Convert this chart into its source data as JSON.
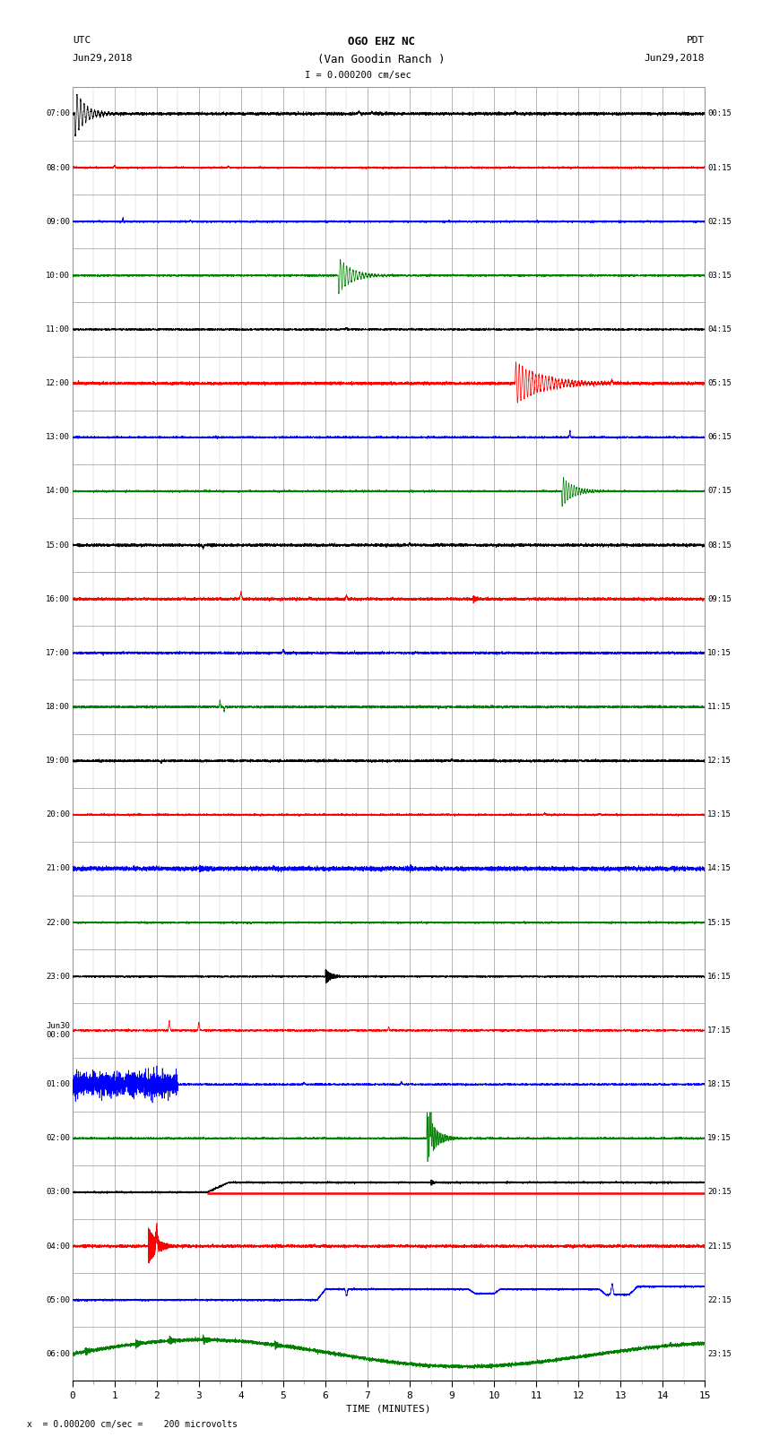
{
  "title_line1": "OGO EHZ NC",
  "title_line2": "(Van Goodin Ranch )",
  "title_line3": "I = 0.000200 cm/sec",
  "utc_label": "UTC",
  "utc_date": "Jun29,2018",
  "pdt_label": "PDT",
  "pdt_date": "Jun29,2018",
  "xlabel": "TIME (MINUTES)",
  "footer": "x  = 0.000200 cm/sec =    200 microvolts",
  "left_times": [
    "07:00",
    "08:00",
    "09:00",
    "10:00",
    "11:00",
    "12:00",
    "13:00",
    "14:00",
    "15:00",
    "16:00",
    "17:00",
    "18:00",
    "19:00",
    "20:00",
    "21:00",
    "22:00",
    "23:00",
    "Jun30\n00:00",
    "01:00",
    "02:00",
    "03:00",
    "04:00",
    "05:00",
    "06:00"
  ],
  "right_times": [
    "00:15",
    "01:15",
    "02:15",
    "03:15",
    "04:15",
    "05:15",
    "06:15",
    "07:15",
    "08:15",
    "09:15",
    "10:15",
    "11:15",
    "12:15",
    "13:15",
    "14:15",
    "15:15",
    "16:15",
    "17:15",
    "18:15",
    "19:15",
    "20:15",
    "21:15",
    "22:15",
    "23:15"
  ],
  "num_rows": 24,
  "minutes_per_row": 15,
  "colors_cycle": [
    "black",
    "red",
    "blue",
    "green"
  ],
  "background": "white",
  "grid_color": "#999999",
  "fig_width": 8.5,
  "fig_height": 16.13,
  "dpi": 100
}
